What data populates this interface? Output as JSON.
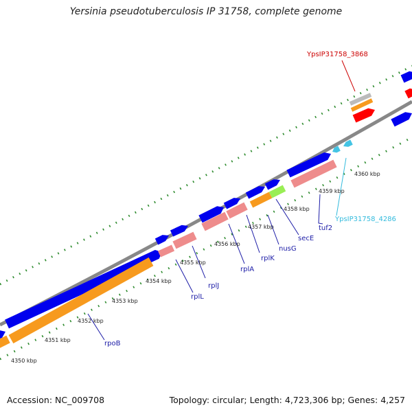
{
  "header": {
    "title": "Yersinia pseudotuberculosis IP 31758, complete genome"
  },
  "footer": {
    "accession": "Accession: NC_009708",
    "summary": "Topology: circular; Length: 4,723,306 bp; Genes: 4,257"
  },
  "scale_ticks": [
    {
      "label": "4350 kbp",
      "kbp": 4350
    },
    {
      "label": "4351 kbp",
      "kbp": 4351
    },
    {
      "label": "4352 kbp",
      "kbp": 4352
    },
    {
      "label": "4353 kbp",
      "kbp": 4353
    },
    {
      "label": "4354 kbp",
      "kbp": 4354
    },
    {
      "label": "4355 kbp",
      "kbp": 4355
    },
    {
      "label": "4356 kbp",
      "kbp": 4356
    },
    {
      "label": "4357 kbp",
      "kbp": 4357
    },
    {
      "label": "4358 kbp",
      "kbp": 4358
    },
    {
      "label": "4359 kbp",
      "kbp": 4359
    },
    {
      "label": "4360 kbp",
      "kbp": 4360
    }
  ],
  "gene_labels": [
    {
      "id": "rpoB",
      "text": "rpoB",
      "color": "#1a1aa6"
    },
    {
      "id": "rplL",
      "text": "rplL",
      "color": "#1a1aa6"
    },
    {
      "id": "rplJ",
      "text": "rplJ",
      "color": "#1a1aa6"
    },
    {
      "id": "rplA",
      "text": "rplA",
      "color": "#1a1aa6"
    },
    {
      "id": "rplK",
      "text": "rplK",
      "color": "#1a1aa6"
    },
    {
      "id": "nusG",
      "text": "nusG",
      "color": "#1a1aa6"
    },
    {
      "id": "secE",
      "text": "secE",
      "color": "#1a1aa6"
    },
    {
      "id": "tuf2",
      "text": "tuf2",
      "color": "#1a1aa6"
    },
    {
      "id": "YpsIP31758_4286",
      "text": "YpsIP31758_4286",
      "color": "#33bbdd"
    },
    {
      "id": "YpsIP31758_3868",
      "text": "YpsIP31758_3868",
      "color": "#cc0000"
    }
  ],
  "colors": {
    "cds_forward": "#0000ee",
    "cds_reverse": "#f79a1e",
    "cds_light": "#ee8c8c",
    "rrna": "#ff0000",
    "trna": "#44c4e4",
    "misc": "#99ee55",
    "grey_feature": "#bbbbbb",
    "backbone": "#888888",
    "tick_marks": "#2e8b2e"
  }
}
